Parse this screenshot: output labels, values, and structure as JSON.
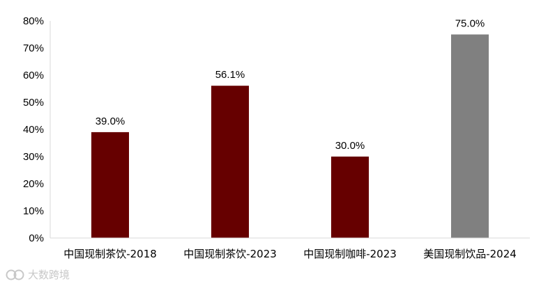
{
  "chart_data": {
    "type": "bar",
    "categories": [
      "中国现制茶饮-2018",
      "中国现制茶饮-2023",
      "中国现制咖啡-2023",
      "美国现制饮品-2024"
    ],
    "values": [
      39.0,
      56.1,
      30.0,
      75.0
    ],
    "value_labels": [
      "39.0%",
      "56.1%",
      "30.0%",
      "75.0%"
    ],
    "bar_colors": [
      "#660000",
      "#660000",
      "#660000",
      "#808080"
    ],
    "ylim": [
      0,
      80
    ],
    "yticks": [
      0,
      10,
      20,
      30,
      40,
      50,
      60,
      70,
      80
    ],
    "ytick_labels": [
      "0%",
      "10%",
      "20%",
      "30%",
      "40%",
      "50%",
      "60%",
      "70%",
      "80%"
    ],
    "grid": false,
    "title": "",
    "xlabel": "",
    "ylabel": ""
  },
  "watermark": {
    "text": "大数跨境",
    "icon": "brand-logo-icon"
  }
}
